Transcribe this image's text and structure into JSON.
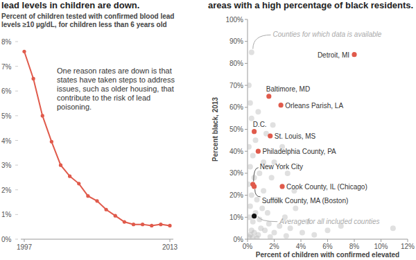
{
  "chart_data": [
    {
      "type": "line",
      "title": "lead levels in children are down.",
      "subtitle": "Percent of children tested with confirmed blood lead levels ≥10 µg/dL, for children less than 6 years old",
      "annotation": "One reason rates are down is that states have taken steps to address issues, such as older housing, that contribute to the risk of lead poisoning.",
      "x": [
        1997,
        1998,
        1999,
        2000,
        2001,
        2002,
        2003,
        2004,
        2005,
        2006,
        2007,
        2008,
        2009,
        2010,
        2011,
        2012,
        2013
      ],
      "values": [
        7.6,
        6.5,
        5.0,
        3.95,
        3.0,
        2.55,
        2.25,
        1.75,
        1.55,
        1.2,
        0.95,
        0.7,
        0.6,
        0.6,
        0.55,
        0.6,
        0.55
      ],
      "color": "#e05a4b",
      "marker": "circle",
      "xlim": [
        1997,
        2013
      ],
      "xticks": [
        1997,
        2013
      ],
      "ylim": [
        0,
        8
      ],
      "yticks": [
        {
          "value": 0,
          "label": "0%"
        },
        {
          "value": 1,
          "label": "1%"
        },
        {
          "value": 2,
          "label": "2%"
        },
        {
          "value": 3,
          "label": "3%"
        },
        {
          "value": 4,
          "label": "4%"
        },
        {
          "value": 5,
          "label": "5%"
        },
        {
          "value": 6,
          "label": "6%"
        },
        {
          "value": 7,
          "label": "7%"
        },
        {
          "value": 8,
          "label": "8%"
        }
      ],
      "grid": false
    },
    {
      "type": "scatter",
      "title": "areas with a high percentage of black residents.",
      "x_label": "Percent of children with confirmed elevated",
      "y_label": "Percent black, 2013",
      "xlim": [
        0,
        12
      ],
      "xticks": [
        {
          "value": 0,
          "label": "0%"
        },
        {
          "value": 2,
          "label": "2%"
        },
        {
          "value": 4,
          "label": "4%"
        },
        {
          "value": 6,
          "label": "6%"
        },
        {
          "value": 8,
          "label": "8%"
        },
        {
          "value": 10,
          "label": "10%"
        },
        {
          "value": 12,
          "label": "12%"
        }
      ],
      "ylim": [
        0,
        100
      ],
      "yticks": [
        {
          "value": 0,
          "label": "0%"
        },
        {
          "value": 10,
          "label": "10%"
        },
        {
          "value": 20,
          "label": "20%"
        },
        {
          "value": 30,
          "label": "30%"
        },
        {
          "value": 40,
          "label": "40%"
        },
        {
          "value": 50,
          "label": "50%"
        },
        {
          "value": 60,
          "label": "60%"
        },
        {
          "value": 70,
          "label": "70%"
        },
        {
          "value": 80,
          "label": "80%"
        },
        {
          "value": 90,
          "label": "90%"
        },
        {
          "value": 100,
          "label": "100%"
        }
      ],
      "grid": false,
      "series": [
        {
          "name": "Counties for which data is available",
          "color": "#bbbbbb",
          "marker": "circle",
          "x": [
            0.2,
            0.3,
            0.1,
            0.5,
            0.8,
            1.0,
            0.4,
            0.6,
            0.2,
            0.9,
            1.3,
            1.6,
            2.0,
            2.4,
            0.3,
            0.7,
            1.1,
            1.5,
            0.5,
            0.2,
            0.9,
            1.2,
            0.1,
            0.4,
            0.6,
            0.3,
            0.2,
            0.1,
            0.3,
            2.8,
            3.2,
            3.6,
            4.1,
            4.5,
            5.0,
            2.2,
            1.8,
            2.0,
            3.0,
            3.5,
            1.4,
            2.6,
            0.8,
            1.9,
            6.0,
            7.0,
            10.9,
            0.05,
            0.15,
            0.7,
            1.7,
            2.9,
            0.4,
            1.2
          ],
          "values": [
            2,
            4,
            1,
            3,
            2,
            5,
            8,
            12,
            15,
            9,
            4,
            7,
            3,
            6,
            20,
            18,
            14,
            12,
            28,
            33,
            30,
            22,
            42,
            38,
            45,
            55,
            62,
            70,
            85,
            10,
            5,
            14,
            3,
            8,
            2,
            18,
            28,
            35,
            30,
            22,
            48,
            42,
            58,
            52,
            4,
            6,
            5,
            25,
            10,
            0.5,
            1,
            1.5,
            0.8,
            35
          ]
        },
        {
          "color": "#e05a4b",
          "marker": "circle",
          "x": [
            8.0,
            1.6,
            2.5,
            0.5,
            1.7,
            0.8,
            0.4,
            2.6,
            0.5
          ],
          "values": [
            84,
            65,
            61,
            49,
            47,
            40,
            25,
            24,
            24
          ],
          "labels": [
            "Detroit, MI",
            "Baltimore, MD",
            "Orleans Parish, LA",
            "D.C.",
            "St. Louis, MS",
            "Philadelphia County, PA",
            "New York City",
            "Cook County, IL (Chicago)",
            "Suffolk County, MA (Boston)"
          ]
        },
        {
          "name": "Average for all included counties",
          "color": "#111111",
          "marker": "circle",
          "x": [
            0.5
          ],
          "values": [
            10.5
          ]
        }
      ]
    }
  ]
}
